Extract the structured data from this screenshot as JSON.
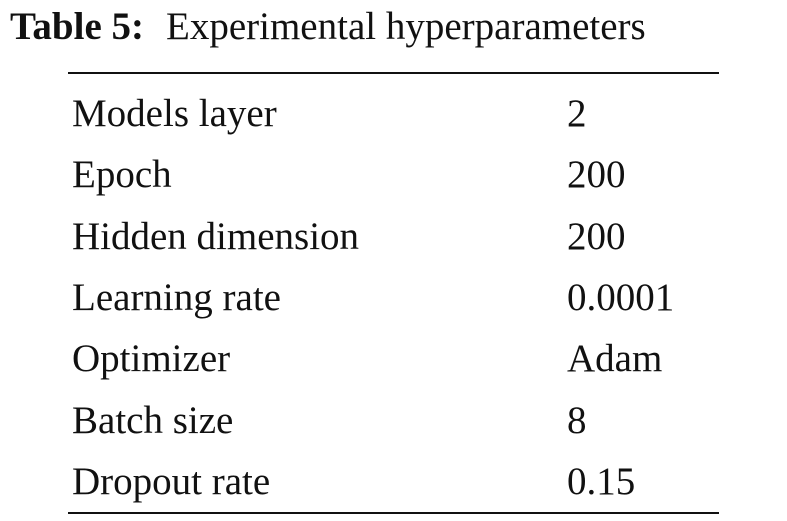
{
  "caption": {
    "label": "Table 5:",
    "text": "Experimental hyperparameters"
  },
  "table": {
    "rows": [
      [
        "Models layer",
        "2"
      ],
      [
        "Epoch",
        "200"
      ],
      [
        "Hidden dimension",
        "200"
      ],
      [
        "Learning rate",
        "0.0001"
      ],
      [
        "Optimizer",
        "Adam"
      ],
      [
        "Batch size",
        "8"
      ],
      [
        "Dropout rate",
        "0.15"
      ]
    ]
  }
}
